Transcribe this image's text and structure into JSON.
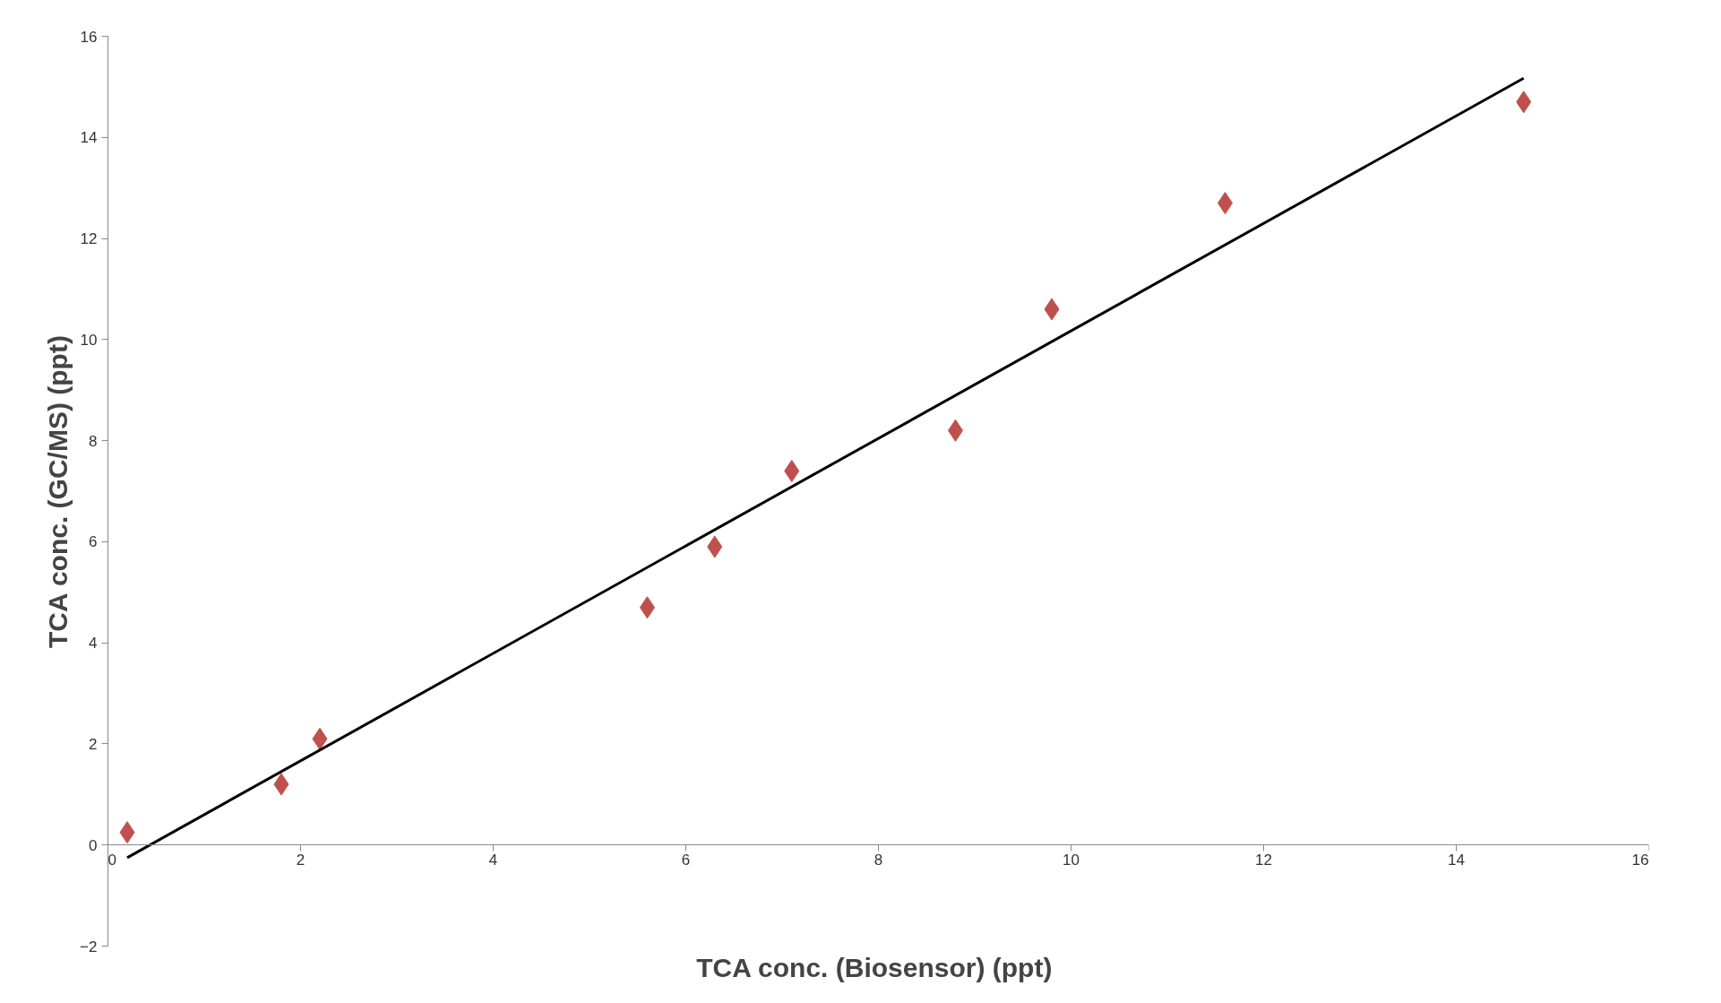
{
  "chart_data": {
    "type": "scatter",
    "xlabel": "TCA conc. (Biosensor)  (ppt)",
    "ylabel": "TCA conc. (GC/MS) (ppt)",
    "xlim": [
      0,
      16
    ],
    "ylim": [
      -2,
      16
    ],
    "xticks": [
      0,
      2,
      4,
      6,
      8,
      10,
      12,
      14,
      16
    ],
    "yticks": [
      -2,
      0,
      2,
      4,
      6,
      8,
      10,
      12,
      14,
      16
    ],
    "grid": false,
    "series": [
      {
        "marker": "diamond",
        "color": "#c0504d",
        "x": [
          0.2,
          1.8,
          2.2,
          5.6,
          6.3,
          7.1,
          8.8,
          9.8,
          11.6,
          14.7
        ],
        "values": [
          0.25,
          1.2,
          2.1,
          4.7,
          5.9,
          7.4,
          8.2,
          10.6,
          12.7,
          14.7
        ]
      },
      {
        "type": "line",
        "color": "#000000",
        "line_style": "solid",
        "x": [
          0.2,
          14.7
        ],
        "values": [
          -0.25,
          15.17
        ]
      }
    ]
  }
}
